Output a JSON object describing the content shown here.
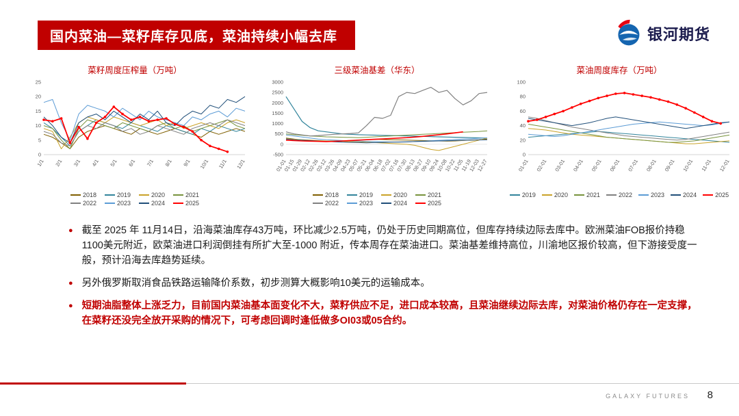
{
  "header": {
    "title": "国内菜油—菜籽库存见底，菜油持续小幅去库"
  },
  "logo": {
    "text": "银河期货"
  },
  "charts": [
    {
      "type": "line",
      "title": "菜籽周度压榨量（万吨）",
      "ylim": [
        0,
        25
      ],
      "yticks": [
        0,
        5,
        10,
        15,
        20,
        25
      ],
      "xlabels": [
        "1/1",
        "2/1",
        "3/1",
        "4/1",
        "5/1",
        "6/1",
        "7/1",
        "8/1",
        "9/1",
        "10/1",
        "11/1",
        "12/1"
      ],
      "series": [
        {
          "name": "2018",
          "color": "#7F5F00",
          "values": [
            7,
            6,
            4,
            2,
            6,
            8,
            9,
            10,
            9,
            8,
            7,
            9,
            8,
            7,
            8,
            9,
            8,
            7,
            6,
            8,
            7,
            8,
            9,
            8
          ]
        },
        {
          "name": "2019",
          "color": "#31849B",
          "values": [
            11,
            9,
            6,
            3,
            8,
            10,
            12,
            11,
            10,
            9,
            11,
            10,
            9,
            8,
            10,
            9,
            8,
            7,
            9,
            8,
            10,
            9,
            8,
            9
          ]
        },
        {
          "name": "2020",
          "color": "#C9A227",
          "values": [
            9,
            8,
            2,
            6,
            11,
            13,
            12,
            11,
            13,
            12,
            11,
            10,
            11,
            12,
            10,
            11,
            9,
            10,
            11,
            10,
            9,
            11,
            12,
            11
          ]
        },
        {
          "name": "2021",
          "color": "#77933C",
          "values": [
            10,
            9,
            5,
            2,
            9,
            12,
            11,
            10,
            9,
            11,
            10,
            9,
            8,
            10,
            11,
            9,
            10,
            8,
            9,
            10,
            11,
            12,
            10,
            9
          ]
        },
        {
          "name": "2022",
          "color": "#808080",
          "values": [
            8,
            7,
            4,
            3,
            8,
            10,
            9,
            11,
            10,
            8,
            9,
            7,
            8,
            10,
            9,
            8,
            7,
            9,
            10,
            11,
            10,
            12,
            11,
            10
          ]
        },
        {
          "name": "2023",
          "color": "#5B9BD5",
          "values": [
            18,
            19,
            11,
            5,
            14,
            17,
            16,
            15,
            13,
            16,
            14,
            12,
            15,
            13,
            12,
            11,
            10,
            13,
            12,
            14,
            15,
            13,
            16,
            15
          ]
        },
        {
          "name": "2024",
          "color": "#1F4E79",
          "values": [
            13,
            10,
            6,
            4,
            11,
            13,
            14,
            12,
            15,
            13,
            11,
            14,
            12,
            15,
            11,
            10,
            13,
            15,
            14,
            17,
            16,
            19,
            18,
            20
          ]
        },
        {
          "name": "2025",
          "color": "#FF0000",
          "width": 1.8,
          "markers": true,
          "values": [
            12,
            11.5,
            12.5,
            4,
            9.5,
            5.5,
            11,
            13,
            16.5,
            14,
            12,
            13,
            11.5,
            12,
            12.5,
            10.5,
            9.5,
            8,
            5,
            3,
            2,
            1,
            null,
            null
          ]
        }
      ]
    },
    {
      "type": "line",
      "title": "三级菜油基差（华东）",
      "ylim": [
        -500,
        3000
      ],
      "yticks": [
        -500,
        0,
        500,
        1000,
        1500,
        2000,
        2500,
        3000
      ],
      "xlabels": [
        "01-01",
        "01-15",
        "01-29",
        "02-12",
        "02-26",
        "03-12",
        "03-26",
        "04-09",
        "04-23",
        "05-07",
        "05-21",
        "06-04",
        "06-18",
        "07-02",
        "07-16",
        "07-30",
        "08-13",
        "08-27",
        "09-10",
        "09-24",
        "10-08",
        "10-22",
        "11-05",
        "11-19",
        "12-03",
        "12-27"
      ],
      "series": [
        {
          "name": "2018",
          "color": "#7F5F00",
          "values": [
            300,
            250,
            200,
            180,
            160,
            150,
            160,
            170,
            180,
            200,
            220,
            240,
            230,
            220,
            210,
            200,
            190,
            180,
            170,
            160,
            150,
            160,
            180,
            200,
            220,
            250
          ]
        },
        {
          "name": "2019",
          "color": "#31849B",
          "width": 1.2,
          "values": [
            2300,
            1700,
            1100,
            800,
            650,
            600,
            550,
            500,
            480,
            460,
            450,
            440,
            430,
            420,
            410,
            400,
            390,
            380,
            370,
            360,
            350,
            340,
            330,
            320,
            310,
            300
          ]
        },
        {
          "name": "2020",
          "color": "#C9A227",
          "values": [
            260,
            240,
            220,
            200,
            180,
            160,
            150,
            140,
            130,
            120,
            100,
            80,
            60,
            40,
            20,
            0,
            -50,
            -150,
            -250,
            -300,
            -200,
            -100,
            0,
            100,
            200,
            300
          ]
        },
        {
          "name": "2021",
          "color": "#77933C",
          "values": [
            500,
            460,
            430,
            400,
            380,
            360,
            350,
            340,
            330,
            320,
            340,
            360,
            380,
            400,
            420,
            440,
            460,
            480,
            500,
            520,
            540,
            560,
            580,
            600,
            620,
            650
          ]
        },
        {
          "name": "2022",
          "color": "#808080",
          "width": 1.2,
          "values": [
            600,
            500,
            450,
            400,
            420,
            450,
            480,
            500,
            520,
            550,
            900,
            1300,
            1250,
            1400,
            2300,
            2500,
            2450,
            2600,
            2750,
            2500,
            2600,
            2200,
            1900,
            2100,
            2450,
            2500
          ]
        },
        {
          "name": "2023",
          "color": "#5B9BD5",
          "values": [
            450,
            400,
            350,
            300,
            250,
            220,
            200,
            180,
            160,
            150,
            140,
            130,
            120,
            110,
            100,
            110,
            130,
            150,
            170,
            190,
            210,
            230,
            250,
            270,
            290,
            310
          ]
        },
        {
          "name": "2024",
          "color": "#1F4E79",
          "values": [
            250,
            220,
            200,
            180,
            160,
            140,
            120,
            100,
            90,
            80,
            70,
            80,
            90,
            100,
            110,
            120,
            130,
            140,
            150,
            160,
            170,
            180,
            190,
            200,
            210,
            220
          ]
        },
        {
          "name": "2025",
          "color": "#FF0000",
          "width": 1.6,
          "values": [
            200,
            180,
            160,
            150,
            140,
            130,
            140,
            160,
            180,
            200,
            220,
            240,
            260,
            280,
            300,
            320,
            350,
            380,
            420,
            460,
            500,
            550,
            600,
            null,
            null,
            null
          ]
        }
      ]
    },
    {
      "type": "line",
      "title": "菜油周度库存（万吨）",
      "ylim": [
        0,
        100
      ],
      "yticks": [
        0,
        20,
        40,
        60,
        80,
        100
      ],
      "xlabels": [
        "01-01",
        "02-01",
        "03-01",
        "04-01",
        "05-01",
        "06-01",
        "07-01",
        "08-01",
        "09-01",
        "10-01",
        "11-01",
        "12-01"
      ],
      "series": [
        {
          "name": "2019",
          "color": "#31849B",
          "values": [
            24,
            25,
            26,
            27,
            28,
            29,
            30,
            31,
            32,
            31,
            30,
            29,
            28,
            27,
            26,
            25,
            24,
            23,
            22,
            21,
            20,
            19,
            18,
            17
          ]
        },
        {
          "name": "2020",
          "color": "#C9A227",
          "values": [
            36,
            35,
            34,
            32,
            30,
            28,
            27,
            26,
            25,
            24,
            23,
            22,
            21,
            20,
            19,
            18,
            17,
            16,
            15,
            15,
            16,
            17,
            18,
            19
          ]
        },
        {
          "name": "2021",
          "color": "#77933C",
          "values": [
            42,
            40,
            38,
            36,
            34,
            32,
            30,
            28,
            26,
            24,
            23,
            22,
            21,
            20,
            19,
            18,
            17,
            17,
            18,
            19,
            21,
            23,
            25,
            27
          ]
        },
        {
          "name": "2022",
          "color": "#808080",
          "values": [
            52,
            50,
            47,
            44,
            41,
            38,
            36,
            34,
            32,
            30,
            28,
            26,
            25,
            24,
            23,
            22,
            21,
            20,
            21,
            23,
            25,
            27,
            29,
            31
          ]
        },
        {
          "name": "2023",
          "color": "#5B9BD5",
          "values": [
            28,
            27,
            26,
            25,
            26,
            28,
            30,
            32,
            34,
            36,
            38,
            40,
            42,
            43,
            44,
            45,
            44,
            43,
            42,
            41,
            40,
            41,
            43,
            45
          ]
        },
        {
          "name": "2024",
          "color": "#1F4E79",
          "values": [
            50,
            48,
            46,
            44,
            42,
            40,
            42,
            44,
            47,
            50,
            52,
            50,
            48,
            46,
            44,
            42,
            40,
            38,
            36,
            38,
            40,
            42,
            44,
            45
          ]
        },
        {
          "name": "2025",
          "color": "#FF0000",
          "width": 1.8,
          "markers": true,
          "values": [
            46,
            48,
            52,
            56,
            60,
            65,
            70,
            74,
            78,
            81,
            84,
            85,
            83,
            81,
            79,
            76,
            73,
            69,
            64,
            58,
            52,
            46,
            43,
            null
          ]
        }
      ]
    }
  ],
  "bullets": [
    {
      "style": "normal",
      "text": "截至 2025 年 11月14日，沿海菜油库存43万吨，环比减少2.5万吨，仍处于历史同期高位，但库存持续边际去库中。欧洲菜油FOB报价持稳1100美元附近，欧菜油进口利润倒挂有所扩大至-1000 附近，传本周存在菜油进口。菜油基差维持高位，川渝地区报价较高，但下游接受度一般，预计沿海去库趋势延续。"
    },
    {
      "style": "normal",
      "text": "另外俄罗斯取消食品铁路运输降价系数，初步测算大概影响10美元的运输成本。"
    },
    {
      "style": "em",
      "text": "短期油脂整体上涨乏力，目前国内菜油基本面变化不大，菜籽供应不足，进口成本较高，且菜油继续边际去库，对菜油价格仍存在一定支撑，在菜籽还没完全放开采购的情况下，可考虑回调时逢低做多OI03或05合约。"
    }
  ],
  "footer": {
    "brand": "GALAXY FUTURES",
    "page": "8"
  }
}
